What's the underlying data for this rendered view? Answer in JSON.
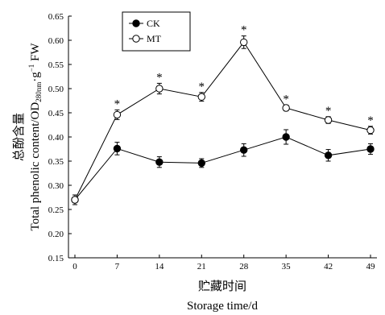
{
  "chart_data": {
    "type": "line",
    "x": [
      0,
      7,
      14,
      21,
      28,
      35,
      42,
      49
    ],
    "xticks": [
      "0",
      "7",
      "14",
      "21",
      "28",
      "35",
      "42",
      "49"
    ],
    "xlim": [
      0,
      49
    ],
    "ylim": [
      0.15,
      0.65
    ],
    "yticks": [
      "0.15",
      "0.20",
      "0.25",
      "0.30",
      "0.35",
      "0.40",
      "0.45",
      "0.50",
      "0.55",
      "0.60",
      "0.65"
    ],
    "xlabel_cn": "贮藏时间",
    "xlabel_en": "Storage time/d",
    "ylabel_cn": "总酚含量",
    "ylabel_en_part1": "Total phenolic content/OD",
    "ylabel_en_sub": "280nm",
    "ylabel_en_part2": "·g",
    "ylabel_en_sup": "−1",
    "ylabel_en_part3": " FW",
    "legend_position": "top-left",
    "significance_marker": "*",
    "significant_x": [
      7,
      14,
      21,
      28,
      35,
      42,
      49
    ],
    "series": [
      {
        "name": "CK",
        "marker": "filled-circle",
        "values": [
          0.27,
          0.376,
          0.348,
          0.346,
          0.373,
          0.4,
          0.362,
          0.375
        ],
        "errors": [
          0.01,
          0.013,
          0.011,
          0.009,
          0.013,
          0.015,
          0.012,
          0.011
        ]
      },
      {
        "name": "MT",
        "marker": "open-circle",
        "values": [
          0.27,
          0.446,
          0.5,
          0.483,
          0.596,
          0.46,
          0.435,
          0.414
        ],
        "errors": [
          0.01,
          0.01,
          0.011,
          0.009,
          0.013,
          0.006,
          0.007,
          0.008
        ]
      }
    ]
  }
}
